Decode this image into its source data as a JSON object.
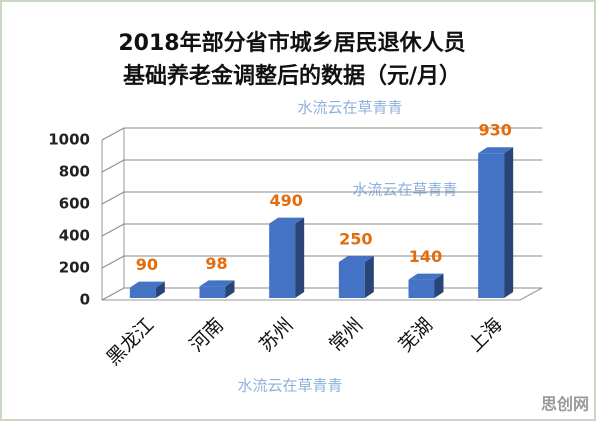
{
  "chart_data": {
    "type": "bar",
    "title": [
      "2018年部分省市城乡居民退休人员",
      "基础养老金调整后的数据（元/月）"
    ],
    "categories": [
      "黑龙江",
      "河南",
      "苏州",
      "常州",
      "芜湖",
      "上海"
    ],
    "values": [
      90,
      98,
      490,
      250,
      140,
      930
    ],
    "color": "#4472c4",
    "label_color": "#e46c0a",
    "ylim": [
      0,
      1000
    ],
    "yticks": [
      0,
      200,
      400,
      600,
      800,
      1000
    ],
    "grid": true
  },
  "watermarks": [
    "水流云在草青青",
    "水流云在草青青",
    "水流云在草青青"
  ],
  "site_mark": "思创网"
}
